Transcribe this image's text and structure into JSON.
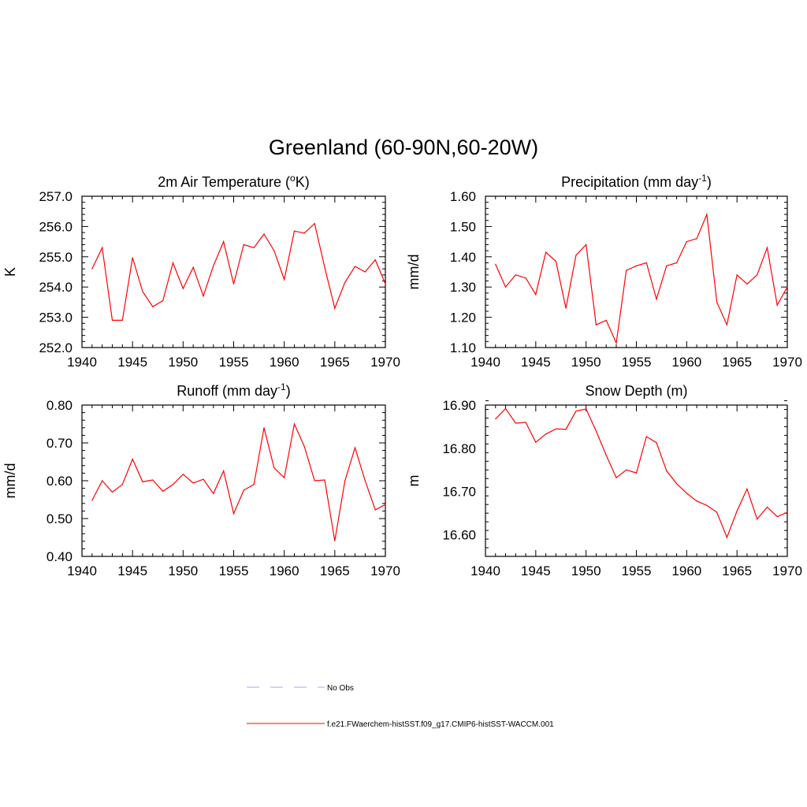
{
  "figure": {
    "title": "Greenland (60-90N,60-20W)",
    "line_color": "#ff0000",
    "obs_color": "#aaaaee"
  },
  "legend": {
    "entries": [
      {
        "label": "No Obs",
        "style": "dashed",
        "color": "#aaaaee"
      },
      {
        "label": "f.e21.FWaerchem-histSST.f09_g17.CMIP6-histSST-WACCM.001",
        "style": "solid",
        "color": "#ff0000"
      }
    ]
  },
  "chart_data": [
    {
      "type": "line",
      "title": "2m Air Temperature (°K)",
      "title_parts": [
        "2m Air Temperature (",
        "o",
        "K)"
      ],
      "ylabel": "K",
      "xlim": [
        1940,
        1970
      ],
      "ylim": [
        252.0,
        257.0
      ],
      "xticks": [
        "1940",
        "1945",
        "1950",
        "1955",
        "1960",
        "1965",
        "1970"
      ],
      "yticks": [
        "252.0",
        "253.0",
        "254.0",
        "255.0",
        "256.0",
        "257.0"
      ],
      "x": [
        1941,
        1942,
        1943,
        1944,
        1945,
        1946,
        1947,
        1948,
        1949,
        1950,
        1951,
        1952,
        1953,
        1954,
        1955,
        1956,
        1957,
        1958,
        1959,
        1960,
        1961,
        1962,
        1963,
        1964,
        1965,
        1966,
        1967,
        1968,
        1969,
        1970
      ],
      "series": [
        {
          "values": [
            254.6,
            255.3,
            252.9,
            252.9,
            254.97,
            253.85,
            253.35,
            253.55,
            254.8,
            253.95,
            254.65,
            253.7,
            254.7,
            255.5,
            254.1,
            255.4,
            255.3,
            255.75,
            255.2,
            254.25,
            255.85,
            255.78,
            256.1,
            254.65,
            253.3,
            254.15,
            254.68,
            254.5,
            254.9,
            254.1
          ]
        }
      ]
    },
    {
      "type": "line",
      "title": "Precipitation (mm day-1)",
      "title_parts": [
        "Precipitation (mm day",
        "-1",
        ")"
      ],
      "ylabel": "mm/d",
      "xlim": [
        1940,
        1970
      ],
      "ylim": [
        1.1,
        1.6
      ],
      "xticks": [
        "1940",
        "1945",
        "1950",
        "1955",
        "1960",
        "1965",
        "1970"
      ],
      "yticks": [
        "1.10",
        "1.20",
        "1.30",
        "1.40",
        "1.50",
        "1.60"
      ],
      "x": [
        1941,
        1942,
        1943,
        1944,
        1945,
        1946,
        1947,
        1948,
        1949,
        1950,
        1951,
        1952,
        1953,
        1954,
        1955,
        1956,
        1957,
        1958,
        1959,
        1960,
        1961,
        1962,
        1963,
        1964,
        1965,
        1966,
        1967,
        1968,
        1969,
        1970
      ],
      "series": [
        {
          "values": [
            1.375,
            1.3,
            1.34,
            1.33,
            1.275,
            1.415,
            1.385,
            1.23,
            1.405,
            1.44,
            1.175,
            1.19,
            1.115,
            1.355,
            1.37,
            1.38,
            1.26,
            1.37,
            1.38,
            1.45,
            1.46,
            1.54,
            1.25,
            1.175,
            1.34,
            1.31,
            1.34,
            1.43,
            1.24,
            1.3
          ]
        }
      ]
    },
    {
      "type": "line",
      "title": "Runoff (mm day-1)",
      "title_parts": [
        "Runoff (mm day",
        "-1",
        ")"
      ],
      "ylabel": "mm/d",
      "xlim": [
        1940,
        1970
      ],
      "ylim": [
        0.4,
        0.8
      ],
      "xticks": [
        "1940",
        "1945",
        "1950",
        "1955",
        "1960",
        "1965",
        "1970"
      ],
      "yticks": [
        "0.40",
        "0.50",
        "0.60",
        "0.70",
        "0.80"
      ],
      "x": [
        1941,
        1942,
        1943,
        1944,
        1945,
        1946,
        1947,
        1948,
        1949,
        1950,
        1951,
        1952,
        1953,
        1954,
        1955,
        1956,
        1957,
        1958,
        1959,
        1960,
        1961,
        1962,
        1963,
        1964,
        1965,
        1966,
        1967,
        1968,
        1969,
        1970
      ],
      "series": [
        {
          "values": [
            0.548,
            0.6,
            0.57,
            0.59,
            0.657,
            0.597,
            0.602,
            0.572,
            0.59,
            0.617,
            0.594,
            0.604,
            0.566,
            0.626,
            0.513,
            0.575,
            0.59,
            0.74,
            0.634,
            0.608,
            0.75,
            0.69,
            0.6,
            0.602,
            0.441,
            0.6,
            0.687,
            0.6,
            0.523,
            0.537
          ]
        }
      ]
    },
    {
      "type": "line",
      "title": "Snow Depth (m)",
      "title_parts": [
        "Snow Depth (m)",
        "",
        ""
      ],
      "ylabel": "m",
      "xlim": [
        1940,
        1970
      ],
      "ylim": [
        16.55,
        16.9
      ],
      "xticks": [
        "1940",
        "1945",
        "1950",
        "1955",
        "1960",
        "1965",
        "1970"
      ],
      "yticks": [
        "16.60",
        "16.70",
        "16.80",
        "16.90"
      ],
      "x": [
        1941,
        1942,
        1943,
        1944,
        1945,
        1946,
        1947,
        1948,
        1949,
        1950,
        1951,
        1952,
        1953,
        1954,
        1955,
        1956,
        1957,
        1958,
        1959,
        1960,
        1961,
        1962,
        1963,
        1964,
        1965,
        1966,
        1967,
        1968,
        1969,
        1970
      ],
      "series": [
        {
          "values": [
            16.868,
            16.892,
            16.858,
            16.86,
            16.814,
            16.833,
            16.845,
            16.844,
            16.886,
            16.891,
            16.84,
            16.784,
            16.732,
            16.75,
            16.743,
            16.827,
            16.813,
            16.748,
            16.718,
            16.696,
            16.678,
            16.668,
            16.652,
            16.594,
            16.655,
            16.706,
            16.636,
            16.664,
            16.642,
            16.652
          ]
        }
      ]
    }
  ]
}
